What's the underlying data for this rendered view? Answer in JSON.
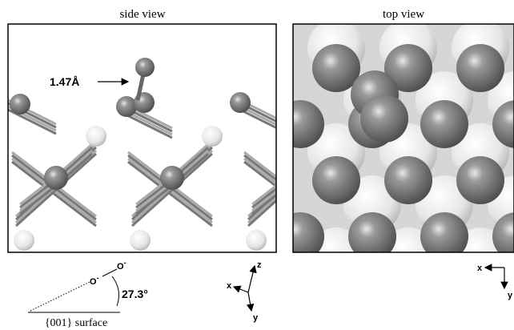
{
  "panels": [
    {
      "title": "side view",
      "annotation": "1.47Å"
    },
    {
      "title": "top view"
    }
  ],
  "inset": {
    "atoms": [
      {
        "label": "O",
        "charge": "-"
      },
      {
        "label": "O",
        "charge": "-"
      }
    ],
    "angle": "27.3°",
    "surface": "{001} surface"
  },
  "axes": [
    {
      "labels": [
        "z",
        "x",
        "y"
      ]
    },
    {
      "labels": [
        "x",
        "y"
      ]
    }
  ]
}
